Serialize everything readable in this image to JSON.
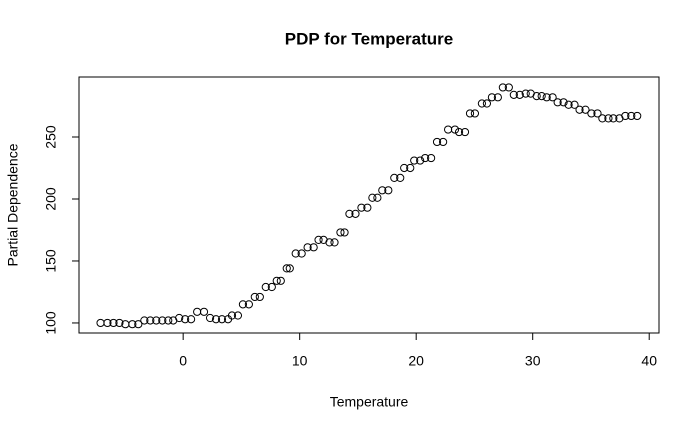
{
  "chart_data": {
    "type": "scatter",
    "title": "PDP for Temperature",
    "x_label": "Temperature",
    "y_label": "Partial Dependence",
    "x": [
      -7.09,
      -6.5,
      -5.98,
      -5.47,
      -4.96,
      -4.36,
      -3.85,
      -3.33,
      -2.82,
      -2.31,
      -1.79,
      -1.28,
      -0.85,
      -0.34,
      0.17,
      0.68,
      1.2,
      1.79,
      2.31,
      2.82,
      3.33,
      3.85,
      4.19,
      4.7,
      5.13,
      5.64,
      6.15,
      6.58,
      7.09,
      7.61,
      8.03,
      8.38,
      8.89,
      9.15,
      9.66,
      10.17,
      10.68,
      11.2,
      11.62,
      12.05,
      12.56,
      12.99,
      13.5,
      13.85,
      14.27,
      14.79,
      15.3,
      15.81,
      16.24,
      16.67,
      17.09,
      17.61,
      18.12,
      18.63,
      18.97,
      19.49,
      19.83,
      20.34,
      20.77,
      21.28,
      21.79,
      22.31,
      22.74,
      23.33,
      23.68,
      24.19,
      24.62,
      25.04,
      25.64,
      26.07,
      26.5,
      27.01,
      27.44,
      27.95,
      28.38,
      28.89,
      29.4,
      29.83,
      30.34,
      30.77,
      31.2,
      31.71,
      32.14,
      32.65,
      33.08,
      33.59,
      34.02,
      34.53,
      35.04,
      35.56,
      35.98,
      36.5,
      36.92,
      37.44,
      37.95,
      38.46,
      38.97
    ],
    "values": [
      100,
      100,
      100,
      100,
      99,
      99,
      99,
      102,
      102,
      102,
      102,
      102,
      102,
      104,
      103,
      103,
      109,
      109,
      104,
      103,
      103,
      103,
      106,
      106,
      115,
      115,
      121,
      121,
      129,
      129,
      134,
      134,
      144,
      144,
      156,
      156,
      161,
      161,
      167,
      167,
      165,
      165,
      173,
      173,
      188,
      188,
      193,
      193,
      201,
      201,
      207,
      207,
      217,
      217,
      225,
      225,
      231,
      231,
      233,
      233,
      246,
      246,
      256,
      256,
      254,
      254,
      269,
      269,
      277,
      277,
      282,
      282,
      290,
      290,
      284,
      284,
      285,
      285,
      283,
      283,
      282,
      282,
      278,
      278,
      276,
      276,
      272,
      272,
      269,
      269,
      265,
      265,
      265,
      265,
      267,
      267,
      267
    ],
    "color": "#000000",
    "xlim": [
      -8.94,
      40.84
    ],
    "xticks": [
      0,
      10,
      20,
      30,
      40
    ],
    "ylim": [
      91.9,
      298.4
    ],
    "yticks": [
      100,
      150,
      200,
      250
    ]
  }
}
